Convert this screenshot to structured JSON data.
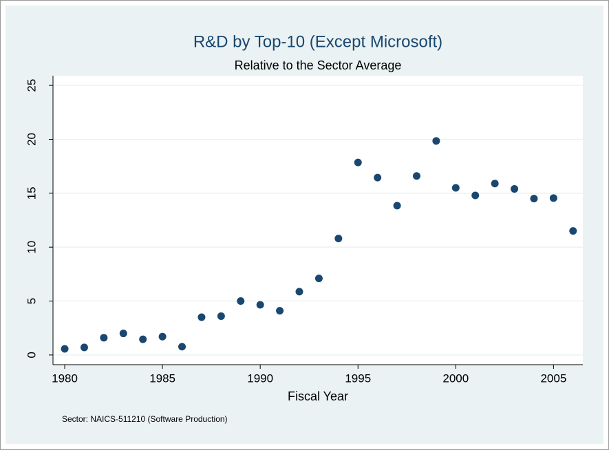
{
  "chart_data": {
    "type": "scatter",
    "title": "R&D by Top-10 (Except Microsoft)",
    "subtitle": "Relative to the Sector Average",
    "x_label": "Fiscal Year",
    "note": "Sector: NAICS-511210 (Software Production)",
    "x": [
      1980,
      1981,
      1982,
      1983,
      1984,
      1985,
      1986,
      1987,
      1988,
      1989,
      1990,
      1991,
      1992,
      1993,
      1994,
      1995,
      1996,
      1997,
      1998,
      1999,
      2000,
      2001,
      2002,
      2003,
      2004,
      2005,
      2006
    ],
    "values": [
      0.57,
      0.7,
      1.6,
      2.0,
      1.45,
      1.7,
      0.77,
      3.5,
      3.6,
      5.0,
      4.65,
      4.1,
      5.87,
      7.1,
      10.8,
      17.85,
      16.45,
      13.85,
      16.6,
      19.85,
      15.5,
      14.8,
      15.9,
      15.4,
      14.5,
      14.55,
      11.5
    ],
    "color": "#1a476f",
    "xlim": [
      1979.4,
      2006.5
    ],
    "xticks": [
      1980,
      1985,
      1990,
      1995,
      2000,
      2005
    ],
    "ylim": [
      -0.9,
      25.9
    ],
    "yticks": [
      0,
      5,
      10,
      15,
      20,
      25
    ],
    "grid": true
  }
}
